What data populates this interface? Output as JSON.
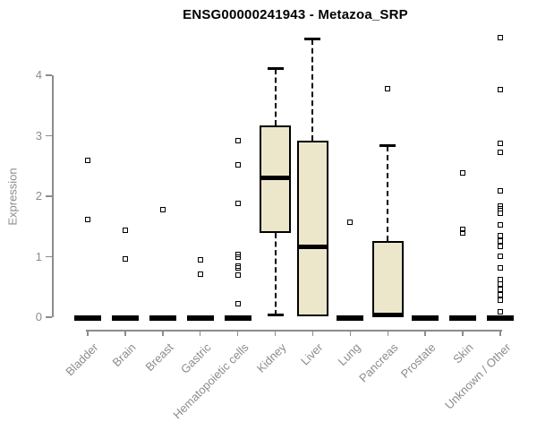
{
  "chart_data": {
    "type": "boxplot",
    "title": "ENSG00000241943 - Metazoa_SRP",
    "xlabel": "",
    "ylabel": "Expression",
    "ylim": [
      0,
      4.65
    ],
    "yticks": [
      0,
      1,
      2,
      3,
      4
    ],
    "grid": false,
    "legend": false,
    "categories": [
      "Bladder",
      "Brain",
      "Breast",
      "Gastric",
      "Hematopoietic cells",
      "Kidney",
      "Liver",
      "Lung",
      "Pancreas",
      "Prostate",
      "Skin",
      "Unknown / Other"
    ],
    "series": [
      {
        "category": "Bladder",
        "q1": 0,
        "median": 0,
        "q3": 0,
        "whisker_low": 0,
        "whisker_high": 0,
        "outliers": [
          2.6,
          1.62
        ]
      },
      {
        "category": "Brain",
        "q1": 0,
        "median": 0,
        "q3": 0,
        "whisker_low": 0,
        "whisker_high": 0,
        "outliers": [
          1.44,
          0.97
        ]
      },
      {
        "category": "Breast",
        "q1": 0,
        "median": 0,
        "q3": 0,
        "whisker_low": 0,
        "whisker_high": 0,
        "outliers": [
          1.78
        ]
      },
      {
        "category": "Gastric",
        "q1": 0,
        "median": 0,
        "q3": 0,
        "whisker_low": 0,
        "whisker_high": 0,
        "outliers": [
          0.95,
          0.71
        ]
      },
      {
        "category": "Hematopoietic cells",
        "q1": 0,
        "median": 0,
        "q3": 0,
        "whisker_low": 0,
        "whisker_high": 0,
        "outliers": [
          2.92,
          2.52,
          1.88,
          1.04,
          1.0,
          0.85,
          0.81,
          0.7,
          0.22
        ]
      },
      {
        "category": "Kidney",
        "q1": 1.39,
        "median": 2.31,
        "q3": 3.17,
        "whisker_low": 0.03,
        "whisker_high": 4.11,
        "outliers": []
      },
      {
        "category": "Liver",
        "q1": 0.02,
        "median": 1.17,
        "q3": 2.92,
        "whisker_low": 0.02,
        "whisker_high": 4.6,
        "outliers": []
      },
      {
        "category": "Lung",
        "q1": 0,
        "median": 0,
        "q3": 0,
        "whisker_low": 0,
        "whisker_high": 0,
        "outliers": [
          1.57
        ]
      },
      {
        "category": "Pancreas",
        "q1": 0.01,
        "median": 0.03,
        "q3": 1.26,
        "whisker_low": 0.01,
        "whisker_high": 2.83,
        "outliers": [
          3.78
        ]
      },
      {
        "category": "Prostate",
        "q1": 0,
        "median": 0,
        "q3": 0,
        "whisker_low": 0,
        "whisker_high": 0,
        "outliers": []
      },
      {
        "category": "Skin",
        "q1": 0,
        "median": 0,
        "q3": 0,
        "whisker_low": 0,
        "whisker_high": 0,
        "outliers": [
          2.39,
          1.45,
          1.4
        ]
      },
      {
        "category": "Unknown / Other",
        "q1": 0,
        "median": 0,
        "q3": 0,
        "whisker_low": 0,
        "whisker_high": 0,
        "outliers": [
          4.62,
          3.76,
          2.87,
          2.73,
          2.09,
          1.84,
          1.8,
          1.72,
          1.53,
          1.35,
          1.26,
          1.17,
          1.01,
          0.81,
          0.62,
          0.55,
          0.46,
          0.37,
          0.28,
          0.09
        ]
      }
    ],
    "colors": {
      "box_fill": "#ece7cb",
      "box_border": "#000000",
      "median": "#000000",
      "axis": "#8c8c8c",
      "tick_label": "#8c8c8c",
      "title": "#000000",
      "background": "#ffffff"
    }
  }
}
